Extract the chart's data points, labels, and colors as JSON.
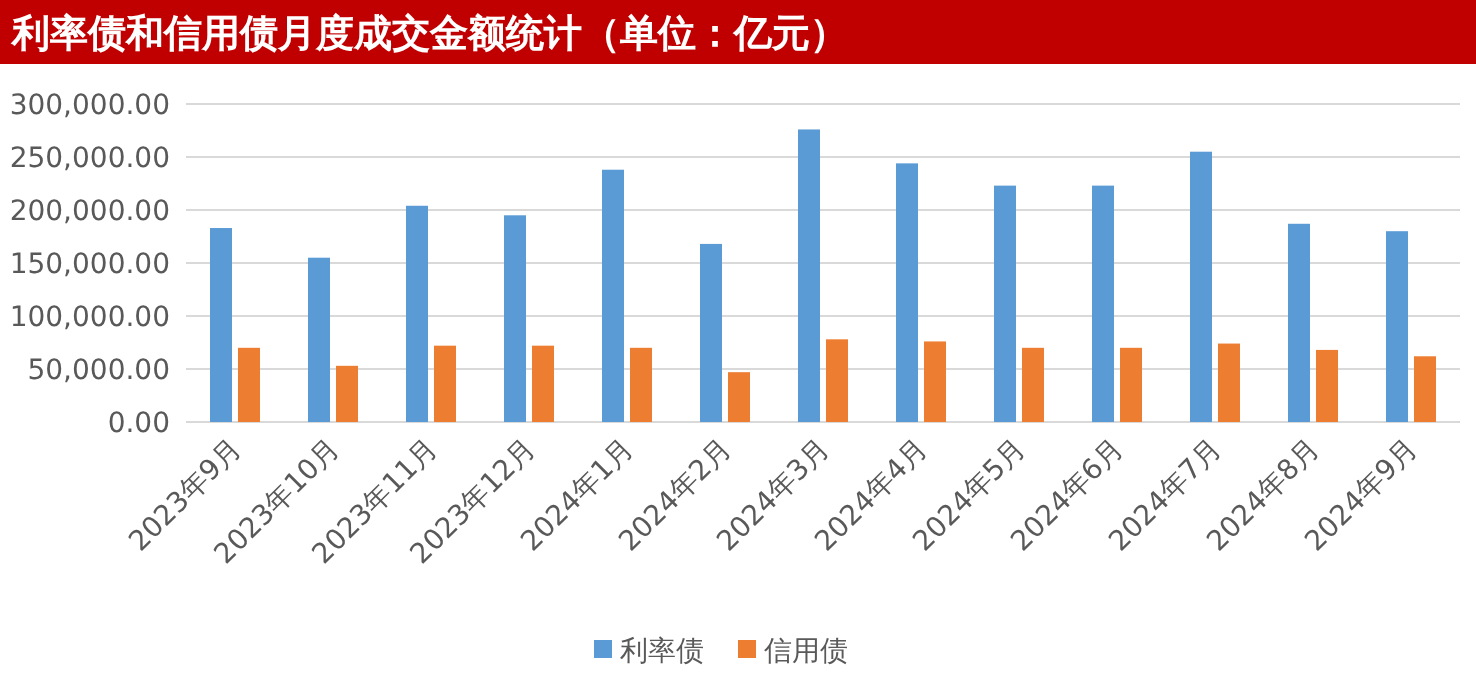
{
  "chart_data": {
    "type": "bar",
    "title": "利率债和信用债月度成交金额统计（单位：亿元）",
    "categories": [
      "2023年9月",
      "2023年10月",
      "2023年11月",
      "2023年12月",
      "2024年1月",
      "2024年2月",
      "2024年3月",
      "2024年4月",
      "2024年5月",
      "2024年6月",
      "2024年7月",
      "2024年8月",
      "2024年9月"
    ],
    "series": [
      {
        "name": "利率债",
        "color": "#5b9bd5",
        "values": [
          183000,
          155000,
          204000,
          195000,
          238000,
          168000,
          276000,
          244000,
          223000,
          223000,
          255000,
          187000,
          180000
        ]
      },
      {
        "name": "信用债",
        "color": "#ed7d31",
        "values": [
          70000,
          53000,
          72000,
          72000,
          70000,
          47000,
          78000,
          76000,
          70000,
          70000,
          74000,
          68000,
          62000
        ]
      }
    ],
    "ylim": [
      0,
      300000
    ],
    "yticks": [
      {
        "value": 0,
        "label": "0.00"
      },
      {
        "value": 50000,
        "label": "50,000.00"
      },
      {
        "value": 100000,
        "label": "100,000.00"
      },
      {
        "value": 150000,
        "label": "150,000.00"
      },
      {
        "value": 200000,
        "label": "200,000.00"
      },
      {
        "value": 250000,
        "label": "250,000.00"
      },
      {
        "value": 300000,
        "label": "300,000.00"
      }
    ],
    "grid": "y",
    "legend": "bottom"
  }
}
